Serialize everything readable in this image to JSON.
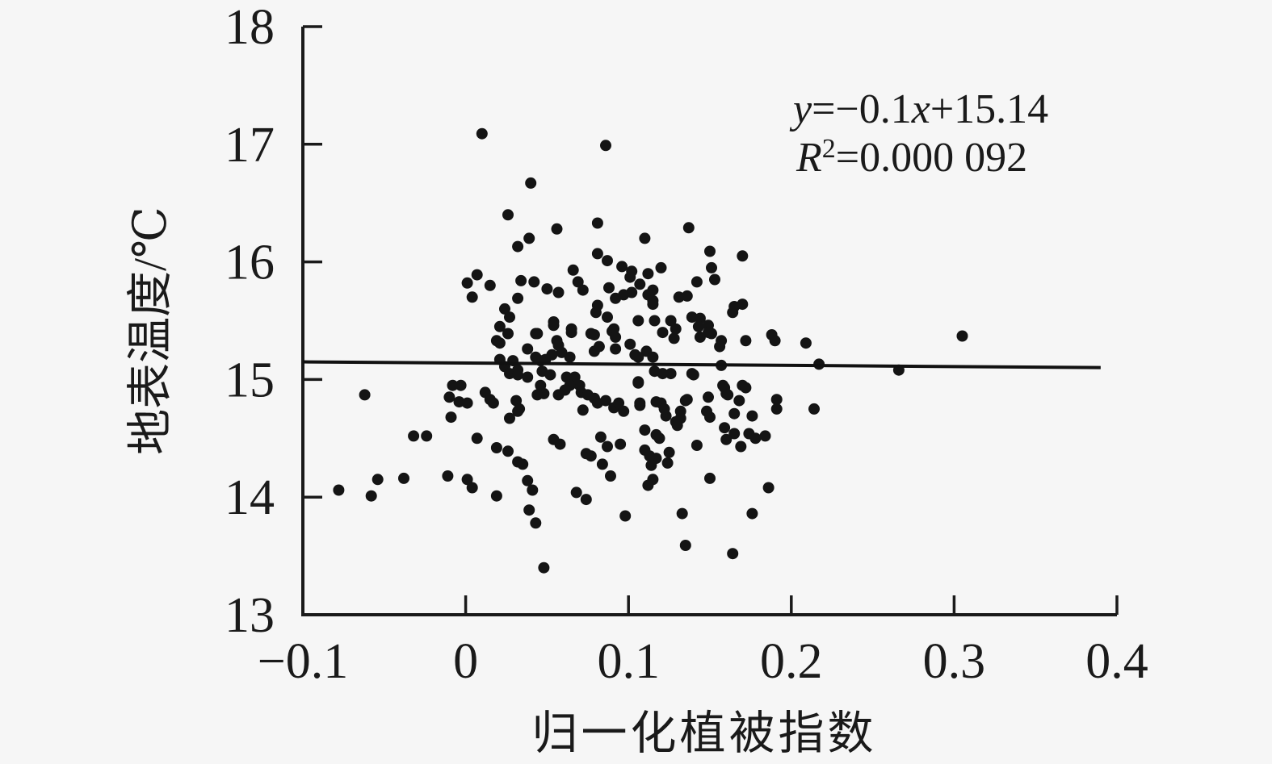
{
  "chart_data": {
    "type": "scatter",
    "title": "",
    "xlabel": "归一化植被指数",
    "ylabel": "地表温度/℃",
    "xlim": [
      -0.1,
      0.4
    ],
    "ylim": [
      13,
      18
    ],
    "grid": false,
    "legend": "none",
    "xticks": [
      -0.1,
      0,
      0.1,
      0.2,
      0.3,
      0.4
    ],
    "xtick_labels": [
      "−0.1",
      "0",
      "0.1",
      "0.2",
      "0.3",
      "0.4"
    ],
    "yticks": [
      13,
      14,
      15,
      16,
      17,
      18
    ],
    "ytick_labels": [
      "13",
      "14",
      "15",
      "16",
      "17",
      "18"
    ],
    "marker_color": "#141414",
    "marker_radius_px": 7,
    "annotation": {
      "line1_var1": "y",
      "line1_mid": "=−0.1",
      "line1_var2": "x",
      "line1_end": "+15.14",
      "line2_var": "R",
      "line2_sup": "2",
      "line2_rest": "=0.000 092"
    },
    "trendline": {
      "slope": -0.1,
      "intercept": 15.14,
      "x_start": -0.1,
      "x_end": 0.39
    },
    "points": [
      [
        0.01,
        17.09
      ],
      [
        0.086,
        16.99
      ],
      [
        0.04,
        16.67
      ],
      [
        0.026,
        16.4
      ],
      [
        0.056,
        16.28
      ],
      [
        0.081,
        16.33
      ],
      [
        0.039,
        16.2
      ],
      [
        0.032,
        16.13
      ],
      [
        0.081,
        16.07
      ],
      [
        0.087,
        16.01
      ],
      [
        0.096,
        15.96
      ],
      [
        0.007,
        15.89
      ],
      [
        0.001,
        15.82
      ],
      [
        0.015,
        15.8
      ],
      [
        0.004,
        15.7
      ],
      [
        0.034,
        15.84
      ],
      [
        0.042,
        15.83
      ],
      [
        0.05,
        15.77
      ],
      [
        0.057,
        15.74
      ],
      [
        0.066,
        15.93
      ],
      [
        0.069,
        15.83
      ],
      [
        0.072,
        15.76
      ],
      [
        0.08,
        15.57
      ],
      [
        0.024,
        15.6
      ],
      [
        0.027,
        15.53
      ],
      [
        0.032,
        15.69
      ],
      [
        0.054,
        15.49
      ],
      [
        0.065,
        15.43
      ],
      [
        0.077,
        15.39
      ],
      [
        0.087,
        15.53
      ],
      [
        0.09,
        15.41
      ],
      [
        0.043,
        15.39
      ],
      [
        0.056,
        15.33
      ],
      [
        0.019,
        15.33
      ],
      [
        0.137,
        16.29
      ],
      [
        0.11,
        16.2
      ],
      [
        0.15,
        16.09
      ],
      [
        0.17,
        16.05
      ],
      [
        0.12,
        15.95
      ],
      [
        0.151,
        15.95
      ],
      [
        0.112,
        15.9
      ],
      [
        0.102,
        15.92
      ],
      [
        0.142,
        15.83
      ],
      [
        0.153,
        15.85
      ],
      [
        0.115,
        15.76
      ],
      [
        0.107,
        15.81
      ],
      [
        0.112,
        15.72
      ],
      [
        0.115,
        15.67
      ],
      [
        0.102,
        15.74
      ],
      [
        0.131,
        15.7
      ],
      [
        0.136,
        15.71
      ],
      [
        0.17,
        15.64
      ],
      [
        0.164,
        15.57
      ],
      [
        0.115,
        15.64
      ],
      [
        0.106,
        15.5
      ],
      [
        0.116,
        15.5
      ],
      [
        0.126,
        15.5
      ],
      [
        0.129,
        15.43
      ],
      [
        0.139,
        15.53
      ],
      [
        0.144,
        15.52
      ],
      [
        0.143,
        15.45
      ],
      [
        0.149,
        15.46
      ],
      [
        0.151,
        15.39
      ],
      [
        0.121,
        15.4
      ],
      [
        0.128,
        15.35
      ],
      [
        0.157,
        15.33
      ],
      [
        0.172,
        15.33
      ],
      [
        0.188,
        15.38
      ],
      [
        0.19,
        15.33
      ],
      [
        0.209,
        15.31
      ],
      [
        0.101,
        15.87
      ],
      [
        0.165,
        15.62
      ],
      [
        0.088,
        15.78
      ],
      [
        0.092,
        15.69
      ],
      [
        0.097,
        15.72
      ],
      [
        0.081,
        15.63
      ],
      [
        0.021,
        15.45
      ],
      [
        0.026,
        15.39
      ],
      [
        0.044,
        15.39
      ],
      [
        0.065,
        15.4
      ],
      [
        0.054,
        15.46
      ],
      [
        0.079,
        15.38
      ],
      [
        0.091,
        15.43
      ],
      [
        0.092,
        15.36
      ],
      [
        0.021,
        15.31
      ],
      [
        0.038,
        15.26
      ],
      [
        0.057,
        15.29
      ],
      [
        0.059,
        15.23
      ],
      [
        0.064,
        15.19
      ],
      [
        0.053,
        15.21
      ],
      [
        0.049,
        15.17
      ],
      [
        0.079,
        15.24
      ],
      [
        0.082,
        15.28
      ],
      [
        0.092,
        15.26
      ],
      [
        0.101,
        15.3
      ],
      [
        0.104,
        15.21
      ],
      [
        0.111,
        15.24
      ],
      [
        0.029,
        15.16
      ],
      [
        0.024,
        15.11
      ],
      [
        0.032,
        15.08
      ],
      [
        0.027,
        15.05
      ],
      [
        0.032,
        15.04
      ],
      [
        0.038,
        15.02
      ],
      [
        0.046,
        15.16
      ],
      [
        0.047,
        15.07
      ],
      [
        0.052,
        15.04
      ],
      [
        0.062,
        15.02
      ],
      [
        0.067,
        15.02
      ],
      [
        0.07,
        14.95
      ],
      [
        0.064,
        14.95
      ],
      [
        0.061,
        14.91
      ],
      [
        0.046,
        14.95
      ],
      [
        0.048,
        14.88
      ],
      [
        0.044,
        14.87
      ],
      [
        0.057,
        14.87
      ],
      [
        0.071,
        14.89
      ],
      [
        0.075,
        14.87
      ],
      [
        0.079,
        14.84
      ],
      [
        0.081,
        14.8
      ],
      [
        0.086,
        14.82
      ],
      [
        0.091,
        14.76
      ],
      [
        0.094,
        14.8
      ],
      [
        0.097,
        14.73
      ],
      [
        0.106,
        14.98
      ],
      [
        0.107,
        14.8
      ],
      [
        0.012,
        14.89
      ],
      [
        0.015,
        14.83
      ],
      [
        -0.003,
        14.95
      ],
      [
        -0.004,
        14.81
      ],
      [
        0.001,
        14.8
      ],
      [
        0.031,
        14.82
      ],
      [
        0.033,
        14.75
      ],
      [
        0.027,
        14.67
      ],
      [
        0.032,
        14.73
      ],
      [
        0.007,
        14.5
      ],
      [
        0.019,
        14.42
      ],
      [
        0.054,
        14.49
      ],
      [
        0.083,
        14.51
      ],
      [
        0.087,
        14.43
      ],
      [
        0.095,
        14.45
      ],
      [
        0.026,
        14.39
      ],
      [
        0.021,
        15.17
      ],
      [
        0.043,
        15.19
      ],
      [
        0.144,
        15.36
      ],
      [
        0.149,
        15.4
      ],
      [
        0.156,
        15.28
      ],
      [
        0.157,
        15.12
      ],
      [
        0.217,
        15.13
      ],
      [
        0.121,
        15.05
      ],
      [
        0.126,
        15.05
      ],
      [
        0.139,
        15.05
      ],
      [
        0.116,
        15.07
      ],
      [
        0.158,
        14.95
      ],
      [
        0.16,
        14.88
      ],
      [
        0.17,
        14.95
      ],
      [
        0.135,
        14.82
      ],
      [
        0.149,
        14.85
      ],
      [
        0.168,
        14.82
      ],
      [
        0.191,
        14.83
      ],
      [
        0.191,
        14.75
      ],
      [
        0.214,
        14.75
      ],
      [
        0.12,
        14.8
      ],
      [
        0.123,
        14.69
      ],
      [
        0.132,
        14.73
      ],
      [
        0.129,
        14.64
      ],
      [
        0.148,
        14.73
      ],
      [
        0.15,
        14.68
      ],
      [
        0.165,
        14.71
      ],
      [
        0.176,
        14.69
      ],
      [
        0.159,
        14.59
      ],
      [
        0.165,
        14.54
      ],
      [
        0.174,
        14.54
      ],
      [
        0.184,
        14.52
      ],
      [
        0.16,
        14.49
      ],
      [
        0.169,
        14.43
      ],
      [
        0.178,
        14.5
      ],
      [
        0.142,
        14.44
      ],
      [
        0.119,
        14.5
      ],
      [
        0.106,
        15.19
      ],
      [
        0.115,
        15.19
      ],
      [
        0.14,
        15.04
      ],
      [
        0.106,
        14.97
      ],
      [
        0.117,
        14.81
      ],
      [
        0.122,
        14.75
      ],
      [
        0.107,
        14.78
      ],
      [
        0.136,
        14.83
      ],
      [
        0.132,
        14.67
      ],
      [
        0.13,
        14.61
      ],
      [
        0.159,
        14.93
      ],
      [
        0.161,
        14.87
      ],
      [
        0.172,
        14.93
      ],
      [
        0.11,
        14.57
      ],
      [
        0.117,
        14.53
      ],
      [
        0.11,
        14.4
      ],
      [
        0.125,
        14.38
      ],
      [
        0.117,
        14.33
      ],
      [
        0.124,
        14.29
      ],
      [
        0.114,
        14.27
      ],
      [
        0.115,
        14.15
      ],
      [
        0.112,
        14.1
      ],
      [
        0.15,
        14.16
      ],
      [
        0.186,
        14.08
      ],
      [
        0.133,
        13.86
      ],
      [
        0.176,
        13.86
      ],
      [
        0.135,
        13.59
      ],
      [
        0.164,
        13.52
      ],
      [
        0.305,
        15.37
      ],
      [
        0.266,
        15.08
      ],
      [
        -0.062,
        14.87
      ],
      [
        -0.008,
        14.95
      ],
      [
        -0.01,
        14.85
      ],
      [
        -0.009,
        14.68
      ],
      [
        0.017,
        14.8
      ],
      [
        -0.032,
        14.52
      ],
      [
        -0.024,
        14.52
      ],
      [
        0.032,
        14.3
      ],
      [
        0.074,
        14.37
      ],
      [
        0.084,
        14.28
      ],
      [
        0.089,
        14.18
      ],
      [
        0.039,
        13.89
      ],
      [
        0.038,
        14.14
      ],
      [
        0.001,
        14.15
      ],
      [
        -0.078,
        14.06
      ],
      [
        -0.058,
        14.01
      ],
      [
        -0.054,
        14.15
      ],
      [
        -0.038,
        14.16
      ],
      [
        -0.011,
        14.18
      ],
      [
        0.004,
        14.08
      ],
      [
        0.019,
        14.01
      ],
      [
        0.035,
        14.28
      ],
      [
        0.041,
        14.06
      ],
      [
        0.043,
        13.78
      ],
      [
        0.048,
        13.4
      ],
      [
        0.058,
        14.45
      ],
      [
        0.077,
        14.35
      ],
      [
        0.068,
        14.04
      ],
      [
        0.074,
        13.98
      ],
      [
        0.113,
        14.35
      ],
      [
        0.098,
        13.84
      ],
      [
        0.072,
        14.74
      ]
    ]
  }
}
